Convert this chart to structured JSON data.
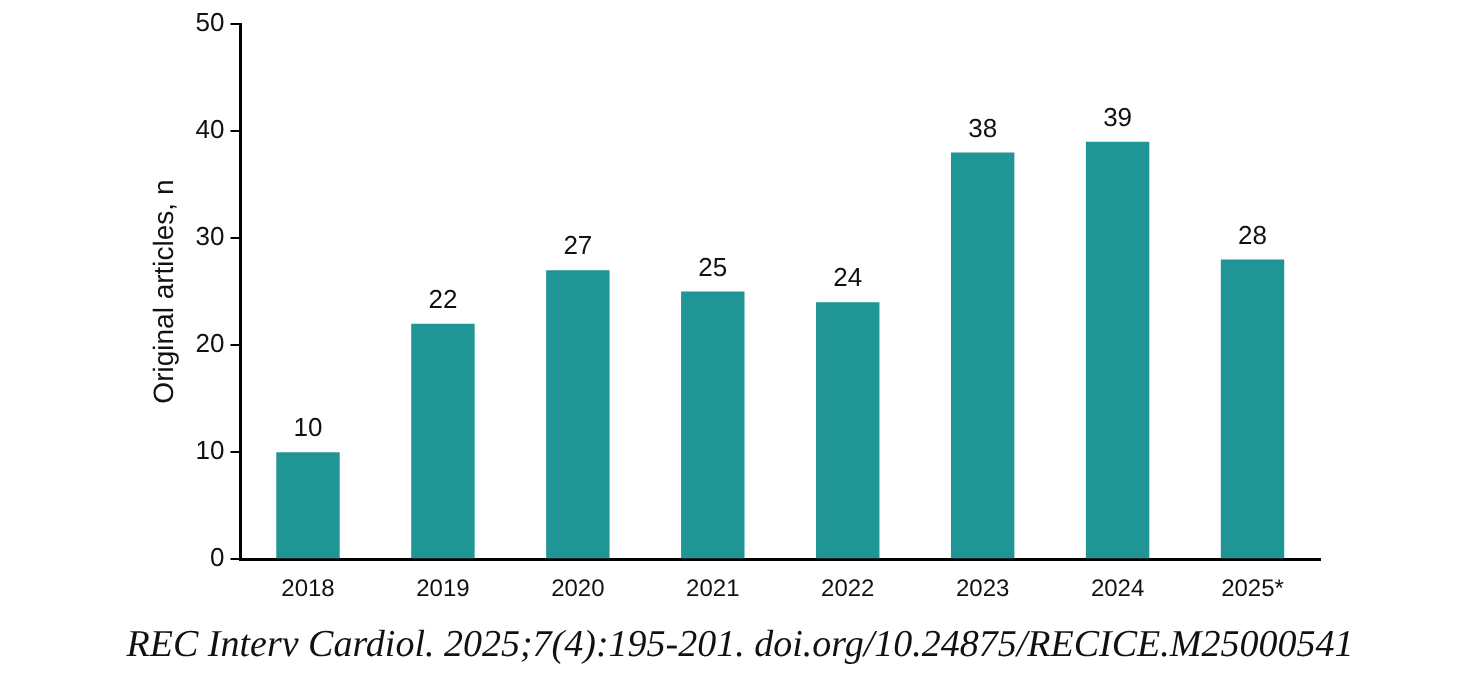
{
  "chart_data": {
    "type": "bar",
    "ylabel": "Original articles, n",
    "categories": [
      "2018",
      "2019",
      "2020",
      "2021",
      "2022",
      "2023",
      "2024",
      "2025*"
    ],
    "values": [
      10,
      22,
      27,
      25,
      24,
      38,
      39,
      28
    ],
    "color": "#1f9695",
    "ylim": [
      0,
      50
    ],
    "yticks": [
      0,
      10,
      20,
      30,
      40,
      50
    ],
    "grid": false,
    "legend": false,
    "data_labels": true,
    "annotations": [
      "REC Interv Cardiol. 2025;7(4):195-201. doi.org/10.24875/RECICE.M25000541"
    ]
  }
}
